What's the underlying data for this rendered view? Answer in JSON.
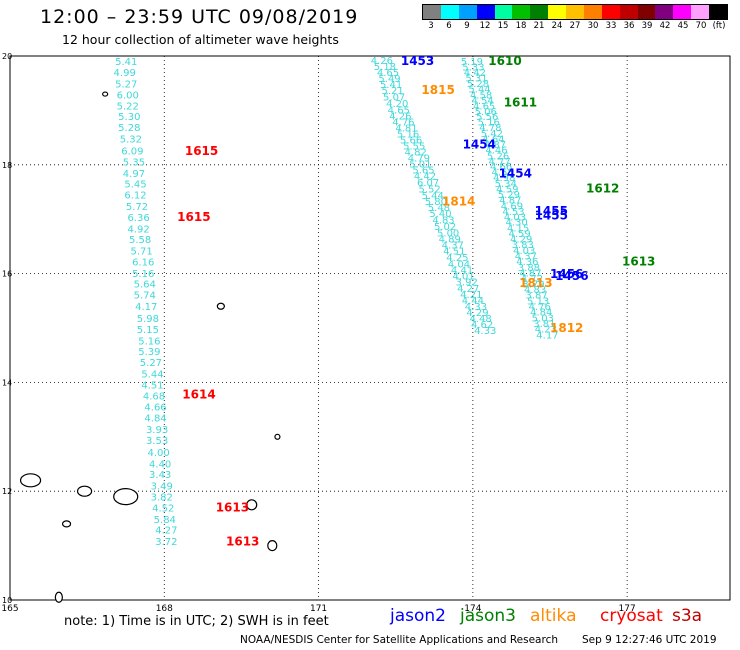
{
  "header": {
    "title": "12:00 – 23:59 UTC 09/08/2019",
    "subtitle": "12 hour collection of altimeter wave heights"
  },
  "legend": {
    "unit": "(ft)",
    "bins": [
      {
        "label": "3",
        "color": "#808080"
      },
      {
        "label": "6",
        "color": "#00ffff"
      },
      {
        "label": "9",
        "color": "#00a0ff"
      },
      {
        "label": "12",
        "color": "#0000ff"
      },
      {
        "label": "15",
        "color": "#00ffa0"
      },
      {
        "label": "18",
        "color": "#00c000"
      },
      {
        "label": "21",
        "color": "#008000"
      },
      {
        "label": "24",
        "color": "#ffff00"
      },
      {
        "label": "27",
        "color": "#ffc000"
      },
      {
        "label": "30",
        "color": "#ff8000"
      },
      {
        "label": "33",
        "color": "#ff0000"
      },
      {
        "label": "36",
        "color": "#c00000"
      },
      {
        "label": "39",
        "color": "#800000"
      },
      {
        "label": "42",
        "color": "#800080"
      },
      {
        "label": "45",
        "color": "#ff00ff"
      },
      {
        "label": "70",
        "color": "#ffa0ff"
      },
      {
        "label": "",
        "color": "#000000"
      }
    ]
  },
  "axes": {
    "lon_ticks": [
      "165",
      "168",
      "171",
      "174",
      "177"
    ],
    "lat_ticks": [
      "20",
      "18",
      "16",
      "14",
      "12",
      "10"
    ]
  },
  "colors": {
    "track": "#40d8d8",
    "jason2": "#0000ff",
    "jason3": "#008000",
    "altika": "#ff8c00",
    "cryosat": "#ff0000",
    "s3a": "#c00000"
  },
  "track_a": [
    {
      "v": "5.41",
      "lon": 167.26,
      "lat": 19.83
    },
    {
      "v": "4.99",
      "lon": 167.23,
      "lat": 19.63
    },
    {
      "v": "5.27",
      "lon": 167.26,
      "lat": 19.42
    },
    {
      "v": "6.00",
      "lon": 167.29,
      "lat": 19.22
    },
    {
      "v": "5.22",
      "lon": 167.29,
      "lat": 19.02
    },
    {
      "v": "5.30",
      "lon": 167.32,
      "lat": 18.82
    },
    {
      "v": "5.28",
      "lon": 167.32,
      "lat": 18.62
    },
    {
      "v": "5.32",
      "lon": 167.35,
      "lat": 18.41
    },
    {
      "v": "6.09",
      "lon": 167.38,
      "lat": 18.19
    },
    {
      "v": "5.35",
      "lon": 167.41,
      "lat": 17.99
    },
    {
      "v": "4.97",
      "lon": 167.41,
      "lat": 17.78
    },
    {
      "v": "5.45",
      "lon": 167.44,
      "lat": 17.58
    },
    {
      "v": "6.12",
      "lon": 167.44,
      "lat": 17.38
    },
    {
      "v": "5.72",
      "lon": 167.47,
      "lat": 17.17
    },
    {
      "v": "6.36",
      "lon": 167.5,
      "lat": 16.97
    },
    {
      "v": "4.92",
      "lon": 167.5,
      "lat": 16.76
    },
    {
      "v": "5.58",
      "lon": 167.53,
      "lat": 16.56
    },
    {
      "v": "5.71",
      "lon": 167.56,
      "lat": 16.35
    },
    {
      "v": "6.16",
      "lon": 167.59,
      "lat": 16.15
    },
    {
      "v": "5.16",
      "lon": 167.59,
      "lat": 15.94
    },
    {
      "v": "5.64",
      "lon": 167.62,
      "lat": 15.74
    },
    {
      "v": "5.74",
      "lon": 167.62,
      "lat": 15.54
    },
    {
      "v": "4.17",
      "lon": 167.65,
      "lat": 15.33
    },
    {
      "v": "5.98",
      "lon": 167.68,
      "lat": 15.11
    },
    {
      "v": "5.15",
      "lon": 167.68,
      "lat": 14.91
    },
    {
      "v": "5.16",
      "lon": 167.71,
      "lat": 14.7
    },
    {
      "v": "5.39",
      "lon": 167.71,
      "lat": 14.5
    },
    {
      "v": "5.27",
      "lon": 167.74,
      "lat": 14.3
    },
    {
      "v": "5.44",
      "lon": 167.77,
      "lat": 14.09
    },
    {
      "v": "4.51",
      "lon": 167.77,
      "lat": 13.89
    },
    {
      "v": "4.68",
      "lon": 167.8,
      "lat": 13.69
    },
    {
      "v": "4.66",
      "lon": 167.83,
      "lat": 13.48
    },
    {
      "v": "4.84",
      "lon": 167.83,
      "lat": 13.28
    },
    {
      "v": "3.93",
      "lon": 167.86,
      "lat": 13.07
    },
    {
      "v": "3.53",
      "lon": 167.86,
      "lat": 12.87
    },
    {
      "v": "4.00",
      "lon": 167.89,
      "lat": 12.65
    },
    {
      "v": "4.40",
      "lon": 167.92,
      "lat": 12.44
    },
    {
      "v": "3.43",
      "lon": 167.92,
      "lat": 12.24
    },
    {
      "v": "3.49",
      "lon": 167.95,
      "lat": 12.03
    },
    {
      "v": "3.82",
      "lon": 167.95,
      "lat": 11.83
    },
    {
      "v": "4.52",
      "lon": 167.98,
      "lat": 11.63
    },
    {
      "v": "5.84",
      "lon": 168.01,
      "lat": 11.42
    },
    {
      "v": "4.27",
      "lon": 168.04,
      "lat": 11.22
    },
    {
      "v": "3.72",
      "lon": 168.04,
      "lat": 11.01
    }
  ],
  "track_b": [
    {
      "v": "4.26",
      "lon": 172.23,
      "lat": 19.85
    },
    {
      "v": "5.18",
      "lon": 172.29,
      "lat": 19.74
    },
    {
      "v": "4.65",
      "lon": 172.35,
      "lat": 19.63
    },
    {
      "v": "5.49",
      "lon": 172.38,
      "lat": 19.52
    },
    {
      "v": "5.41",
      "lon": 172.41,
      "lat": 19.41
    },
    {
      "v": "5.21",
      "lon": 172.44,
      "lat": 19.3
    },
    {
      "v": "5.07",
      "lon": 172.47,
      "lat": 19.18
    },
    {
      "v": "4.20",
      "lon": 172.53,
      "lat": 19.06
    },
    {
      "v": "4.65",
      "lon": 172.56,
      "lat": 18.94
    },
    {
      "v": "4.26",
      "lon": 172.59,
      "lat": 18.83
    },
    {
      "v": "4.76",
      "lon": 172.65,
      "lat": 18.72
    },
    {
      "v": "4.81",
      "lon": 172.71,
      "lat": 18.61
    },
    {
      "v": "5.16",
      "lon": 172.74,
      "lat": 18.5
    },
    {
      "v": "5.66",
      "lon": 172.8,
      "lat": 18.39
    },
    {
      "v": "5.55",
      "lon": 172.86,
      "lat": 18.28
    },
    {
      "v": "4.82",
      "lon": 172.89,
      "lat": 18.17
    },
    {
      "v": "4.79",
      "lon": 172.95,
      "lat": 18.06
    },
    {
      "v": "5.01",
      "lon": 172.98,
      "lat": 17.95
    },
    {
      "v": "5.65",
      "lon": 173.04,
      "lat": 17.84
    },
    {
      "v": "4.42",
      "lon": 173.07,
      "lat": 17.73
    },
    {
      "v": "6.07",
      "lon": 173.13,
      "lat": 17.61
    },
    {
      "v": "5.52",
      "lon": 173.16,
      "lat": 17.49
    },
    {
      "v": "5.44",
      "lon": 173.22,
      "lat": 17.37
    },
    {
      "v": "5.80",
      "lon": 173.28,
      "lat": 17.26
    },
    {
      "v": "5.48",
      "lon": 173.34,
      "lat": 17.15
    },
    {
      "v": "5.40",
      "lon": 173.37,
      "lat": 17.04
    },
    {
      "v": "4.83",
      "lon": 173.43,
      "lat": 16.92
    },
    {
      "v": "5.02",
      "lon": 173.46,
      "lat": 16.8
    },
    {
      "v": "5.00",
      "lon": 173.52,
      "lat": 16.68
    },
    {
      "v": "4.89",
      "lon": 173.55,
      "lat": 16.57
    },
    {
      "v": "4.37",
      "lon": 173.61,
      "lat": 16.46
    },
    {
      "v": "4.51",
      "lon": 173.64,
      "lat": 16.35
    },
    {
      "v": "4.25",
      "lon": 173.7,
      "lat": 16.23
    },
    {
      "v": "4.04",
      "lon": 173.73,
      "lat": 16.11
    },
    {
      "v": "4.41",
      "lon": 173.79,
      "lat": 16.0
    },
    {
      "v": "4.01",
      "lon": 173.82,
      "lat": 15.89
    },
    {
      "v": "3.92",
      "lon": 173.88,
      "lat": 15.78
    },
    {
      "v": "4.27",
      "lon": 173.91,
      "lat": 15.66
    },
    {
      "v": "4.21",
      "lon": 173.97,
      "lat": 15.55
    },
    {
      "v": "4.44",
      "lon": 174.0,
      "lat": 15.44
    },
    {
      "v": "4.33",
      "lon": 174.06,
      "lat": 15.33
    },
    {
      "v": "4.29",
      "lon": 174.09,
      "lat": 15.22
    },
    {
      "v": "4.48",
      "lon": 174.15,
      "lat": 15.11
    },
    {
      "v": "4.62",
      "lon": 174.18,
      "lat": 15.0
    },
    {
      "v": "4.33",
      "lon": 174.24,
      "lat": 14.89
    }
  ],
  "track_c": [
    {
      "v": "5.19",
      "lon": 173.98,
      "lat": 19.83
    },
    {
      "v": "5.33",
      "lon": 174.01,
      "lat": 19.73
    },
    {
      "v": "4.42",
      "lon": 174.04,
      "lat": 19.63
    },
    {
      "v": "5.31",
      "lon": 174.07,
      "lat": 19.53
    },
    {
      "v": "5.28",
      "lon": 174.1,
      "lat": 19.43
    },
    {
      "v": "5.44",
      "lon": 174.13,
      "lat": 19.33
    },
    {
      "v": "4.58",
      "lon": 174.16,
      "lat": 19.22
    },
    {
      "v": "4.54",
      "lon": 174.19,
      "lat": 19.12
    },
    {
      "v": "4.65",
      "lon": 174.22,
      "lat": 19.02
    },
    {
      "v": "5.06",
      "lon": 174.25,
      "lat": 18.92
    },
    {
      "v": "5.56",
      "lon": 174.28,
      "lat": 18.82
    },
    {
      "v": "5.16",
      "lon": 174.31,
      "lat": 18.72
    },
    {
      "v": "4.78",
      "lon": 174.34,
      "lat": 18.62
    },
    {
      "v": "5.42",
      "lon": 174.37,
      "lat": 18.51
    },
    {
      "v": "4.64",
      "lon": 174.4,
      "lat": 18.41
    },
    {
      "v": "4.87",
      "lon": 174.43,
      "lat": 18.31
    },
    {
      "v": "4.46",
      "lon": 174.46,
      "lat": 18.21
    },
    {
      "v": "5.26",
      "lon": 174.49,
      "lat": 18.1
    },
    {
      "v": "4.77",
      "lon": 174.52,
      "lat": 18.0
    },
    {
      "v": "4.66",
      "lon": 174.55,
      "lat": 17.9
    },
    {
      "v": "4.58",
      "lon": 174.58,
      "lat": 17.8
    },
    {
      "v": "4.98",
      "lon": 174.61,
      "lat": 17.7
    },
    {
      "v": "5.34",
      "lon": 174.64,
      "lat": 17.59
    },
    {
      "v": "4.59",
      "lon": 174.67,
      "lat": 17.49
    },
    {
      "v": "5.29",
      "lon": 174.7,
      "lat": 17.39
    },
    {
      "v": "4.87",
      "lon": 174.73,
      "lat": 17.29
    },
    {
      "v": "4.69",
      "lon": 174.76,
      "lat": 17.18
    },
    {
      "v": "4.53",
      "lon": 174.79,
      "lat": 17.08
    },
    {
      "v": "4.03",
      "lon": 174.82,
      "lat": 16.98
    },
    {
      "v": "4.30",
      "lon": 174.85,
      "lat": 16.88
    },
    {
      "v": "4.15",
      "lon": 174.88,
      "lat": 16.77
    },
    {
      "v": "4.59",
      "lon": 174.91,
      "lat": 16.67
    },
    {
      "v": "4.29",
      "lon": 174.94,
      "lat": 16.57
    },
    {
      "v": "3.83",
      "lon": 174.97,
      "lat": 16.47
    },
    {
      "v": "4.03",
      "lon": 175.0,
      "lat": 16.36
    },
    {
      "v": "4.37",
      "lon": 175.03,
      "lat": 16.26
    },
    {
      "v": "4.36",
      "lon": 175.06,
      "lat": 16.16
    },
    {
      "v": "3.88",
      "lon": 175.09,
      "lat": 16.05
    },
    {
      "v": "4.87",
      "lon": 175.12,
      "lat": 15.95
    },
    {
      "v": "4.72",
      "lon": 175.15,
      "lat": 15.85
    },
    {
      "v": "3.79",
      "lon": 175.18,
      "lat": 15.74
    },
    {
      "v": "4.83",
      "lon": 175.21,
      "lat": 15.64
    },
    {
      "v": "3.87",
      "lon": 175.24,
      "lat": 15.54
    },
    {
      "v": "5.13",
      "lon": 175.27,
      "lat": 15.43
    },
    {
      "v": "4.76",
      "lon": 175.3,
      "lat": 15.33
    },
    {
      "v": "4.84",
      "lon": 175.33,
      "lat": 15.23
    },
    {
      "v": "5.03",
      "lon": 175.36,
      "lat": 15.12
    },
    {
      "v": "3.81",
      "lon": 175.39,
      "lat": 15.02
    },
    {
      "v": "4.23",
      "lon": 175.42,
      "lat": 14.92
    },
    {
      "v": "4.17",
      "lon": 175.45,
      "lat": 14.81
    }
  ],
  "time_labels": [
    {
      "t": "1615",
      "sat": "cryosat",
      "lon": 168.4,
      "lat": 18.18
    },
    {
      "t": "1615",
      "sat": "cryosat",
      "lon": 168.25,
      "lat": 16.97
    },
    {
      "t": "1614",
      "sat": "cryosat",
      "lon": 168.35,
      "lat": 13.7
    },
    {
      "t": "1613",
      "sat": "cryosat",
      "lon": 169.0,
      "lat": 11.63
    },
    {
      "t": "1613",
      "sat": "cryosat",
      "lon": 169.2,
      "lat": 11.0
    },
    {
      "t": "1453",
      "sat": "jason2",
      "lon": 172.6,
      "lat": 19.83
    },
    {
      "t": "1454",
      "sat": "jason2",
      "lon": 173.8,
      "lat": 18.3
    },
    {
      "t": "1454",
      "sat": "jason2",
      "lon": 174.5,
      "lat": 17.77
    },
    {
      "t": "1455",
      "sat": "jason2",
      "lon": 175.2,
      "lat": 17.08
    },
    {
      "t": "1455",
      "sat": "jason2",
      "lon": 175.2,
      "lat": 16.99
    },
    {
      "t": "1456",
      "sat": "jason2",
      "lon": 175.5,
      "lat": 15.92
    },
    {
      "t": "1456",
      "sat": "jason2",
      "lon": 175.6,
      "lat": 15.88
    },
    {
      "t": "1610",
      "sat": "jason3",
      "lon": 174.3,
      "lat": 19.83
    },
    {
      "t": "1611",
      "sat": "jason3",
      "lon": 174.6,
      "lat": 19.07
    },
    {
      "t": "1612",
      "sat": "jason3",
      "lon": 176.2,
      "lat": 17.49
    },
    {
      "t": "1613",
      "sat": "jason3",
      "lon": 176.9,
      "lat": 16.15
    },
    {
      "t": "1815",
      "sat": "altika",
      "lon": 173.0,
      "lat": 19.3
    },
    {
      "t": "1814",
      "sat": "altika",
      "lon": 173.4,
      "lat": 17.25
    },
    {
      "t": "1813",
      "sat": "altika",
      "lon": 174.9,
      "lat": 15.75
    },
    {
      "t": "1812",
      "sat": "altika",
      "lon": 175.5,
      "lat": 14.93
    }
  ],
  "islands": [
    {
      "lon": 166.85,
      "lat": 19.3,
      "w": 5,
      "h": 4
    },
    {
      "lon": 169.1,
      "lat": 15.4,
      "w": 7,
      "h": 6
    },
    {
      "lon": 170.2,
      "lat": 13.0,
      "w": 5,
      "h": 5
    },
    {
      "lon": 165.4,
      "lat": 12.2,
      "w": 20,
      "h": 13
    },
    {
      "lon": 166.45,
      "lat": 12.0,
      "w": 14,
      "h": 10
    },
    {
      "lon": 167.25,
      "lat": 11.9,
      "w": 24,
      "h": 16
    },
    {
      "lon": 169.7,
      "lat": 11.75,
      "w": 10,
      "h": 10
    },
    {
      "lon": 170.1,
      "lat": 11.0,
      "w": 9,
      "h": 10
    },
    {
      "lon": 166.1,
      "lat": 11.4,
      "w": 8,
      "h": 6
    },
    {
      "lon": 165.95,
      "lat": 10.05,
      "w": 7,
      "h": 10
    }
  ],
  "footer": {
    "note": "note:  1) Time is in UTC;  2) SWH is in feet",
    "satellites": [
      {
        "name": "jason2",
        "color": "#0000ff"
      },
      {
        "name": "jason3",
        "color": "#008000"
      },
      {
        "name": "altika",
        "color": "#ff8c00"
      },
      {
        "name": "cryosat",
        "color": "#ff0000"
      },
      {
        "name": "s3a",
        "color": "#c00000"
      }
    ],
    "credit": "NOAA/NESDIS Center for Satellite Applications and Research",
    "timestamp": "Sep  9 12:27:46 UTC 2019"
  }
}
